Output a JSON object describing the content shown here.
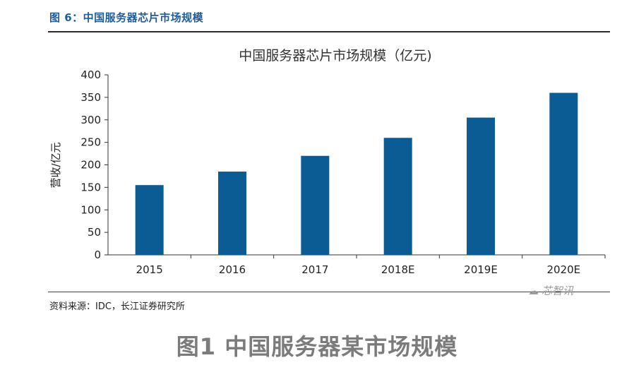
{
  "header": {
    "figure_label": "图 6：中国服务器芯片市场规模"
  },
  "chart_data": {
    "type": "bar",
    "title": "中国服务器芯片市场规模（亿元)",
    "xlabel": "",
    "ylabel": "营收/亿元",
    "categories": [
      "2015",
      "2016",
      "2017",
      "2018E",
      "2019E",
      "2020E"
    ],
    "values": [
      155,
      185,
      220,
      260,
      305,
      360
    ],
    "ylim": [
      0,
      400
    ],
    "yticks": [
      0,
      50,
      100,
      150,
      200,
      250,
      300,
      350,
      400
    ],
    "grid": false,
    "bar_color": "#0b5b94"
  },
  "footer": {
    "source": "资料来源：IDC，长江证券研究所",
    "watermark": "芯智讯",
    "caption": "图1 中国服务器某市场规模"
  }
}
